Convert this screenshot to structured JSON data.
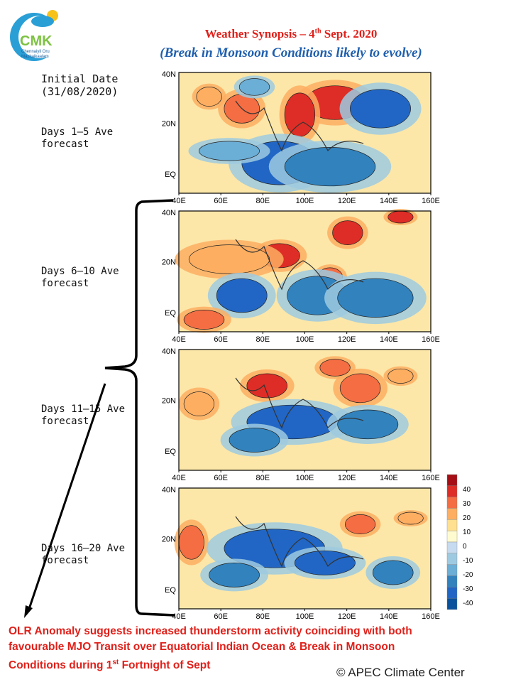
{
  "logo": {
    "initials": "CMK",
    "subtitle_1": "Chennaiyil Oru",
    "subtitle_2": "Mazhaikaalam"
  },
  "title": {
    "line1_prefix": "Weather Synopsis – 4",
    "line1_sup": "th",
    "line1_suffix": " Sept. 2020",
    "line2": "(Break in Monsoon Conditions likely to evolve)"
  },
  "labels": {
    "initial_date_1": "Initial Date",
    "initial_date_2": "(31/08/2020)"
  },
  "panels": [
    {
      "label_1": "Days 1–5 Ave",
      "label_2": "forecast"
    },
    {
      "label_1": "Days 6–10 Ave",
      "label_2": "forecast"
    },
    {
      "label_1": "Days 11–15 Ave",
      "label_2": "forecast"
    },
    {
      "label_1": "Days 16–20 Ave",
      "label_2": "forecast"
    }
  ],
  "map_axes": {
    "lat_labels": [
      "40N",
      "20N",
      "EQ"
    ],
    "lon_labels": [
      "40E",
      "60E",
      "80E",
      "100E",
      "120E",
      "140E",
      "160E"
    ]
  },
  "colorbar": {
    "ticks": [
      "40",
      "30",
      "20",
      "10",
      "0",
      "-10",
      "-20",
      "-30",
      "-40"
    ],
    "colors": [
      "#a50f15",
      "#de2d26",
      "#f46d43",
      "#fdae61",
      "#fee090",
      "#fffbd0",
      "#c6dbef",
      "#9ecae1",
      "#6baed6",
      "#3182bd",
      "#2166c4",
      "#08519c"
    ]
  },
  "footer": {
    "line1": "OLR Anomaly suggests increased thunderstorm activity coinciding with both",
    "line2": "favourable MJO Transit over Equatorial Indian Ocean & Break in Monsoon",
    "line3_prefix": "Conditions during 1",
    "line3_sup": "st",
    "line3_suffix": " Fortnight of Sept"
  },
  "credit": "© APEC Climate Center"
}
